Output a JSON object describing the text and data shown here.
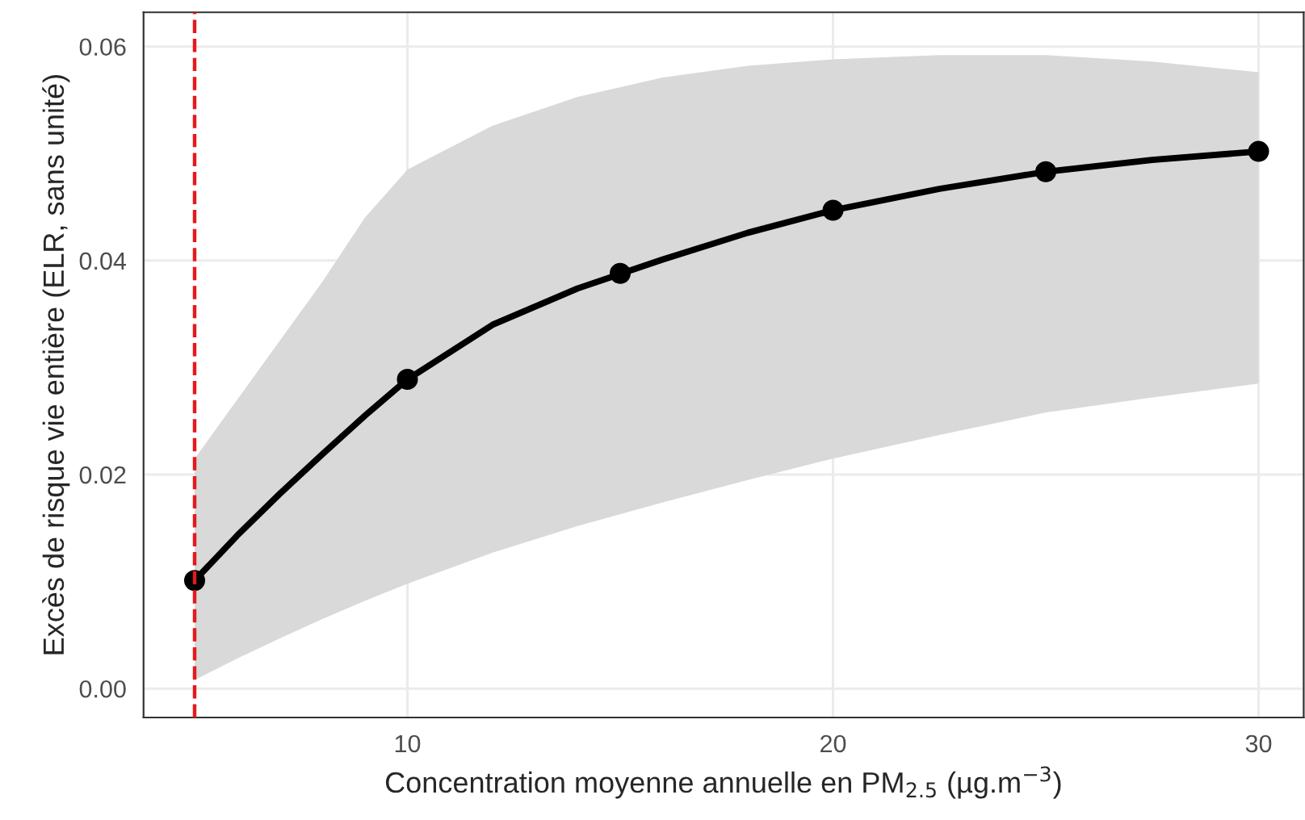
{
  "chart_data": {
    "type": "line",
    "xlabel": "Concentration moyenne annuelle en PM$_{2.5}$ (µg.m$^{−3}$)",
    "ylabel": "Excès de risque vie entière (ELR, sans unité)",
    "series": [
      {
        "color": "#000000",
        "marker": "none",
        "x": [
          5,
          6,
          7,
          8,
          9,
          10,
          12,
          14,
          16,
          18,
          20,
          22.5,
          25,
          27.5,
          30
        ],
        "values": [
          0.0101,
          0.0143,
          0.0182,
          0.0219,
          0.0255,
          0.0289,
          0.034,
          0.0374,
          0.0401,
          0.0426,
          0.0447,
          0.0467,
          0.0483,
          0.0494,
          0.0502
        ],
        "lower": [
          0.0008,
          0.0028,
          0.0047,
          0.0065,
          0.0082,
          0.0098,
          0.0127,
          0.0152,
          0.0174,
          0.0195,
          0.0215,
          0.0237,
          0.0258,
          0.0272,
          0.0285
        ],
        "upper": [
          0.0215,
          0.027,
          0.0325,
          0.038,
          0.044,
          0.0485,
          0.0526,
          0.0553,
          0.0571,
          0.0582,
          0.0588,
          0.0592,
          0.0592,
          0.0586,
          0.0576
        ]
      },
      {
        "type": "scatter",
        "color": "#000000",
        "marker": "circle",
        "x": [
          5,
          10,
          15,
          20,
          25,
          30
        ],
        "values": [
          0.0101,
          0.0289,
          0.0388,
          0.0447,
          0.0483,
          0.0502
        ]
      }
    ],
    "xlim": [
      3.8,
      31.06
    ],
    "ylim": [
      -0.0027,
      0.0632
    ],
    "xticks": [
      10,
      20,
      30
    ],
    "yticks": [
      {
        "value": 0,
        "label": "0.00"
      },
      {
        "value": 0.02,
        "label": "0.02"
      },
      {
        "value": 0.04,
        "label": "0.04"
      },
      {
        "value": 0.06,
        "label": "0.06"
      }
    ],
    "ref_lines": [
      {
        "axis": "x",
        "value": 5,
        "color": "#e41a1c",
        "line_style": "dashed"
      }
    ],
    "grid": true,
    "line_style": "solid",
    "legend": false
  }
}
